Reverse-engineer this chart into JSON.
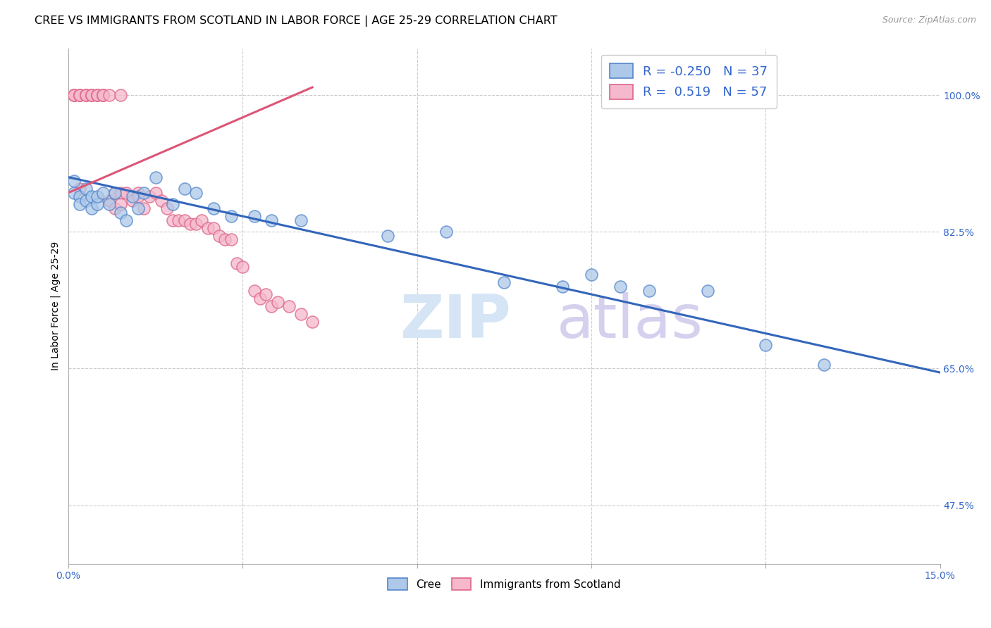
{
  "title": "CREE VS IMMIGRANTS FROM SCOTLAND IN LABOR FORCE | AGE 25-29 CORRELATION CHART",
  "source": "Source: ZipAtlas.com",
  "ylabel": "In Labor Force | Age 25-29",
  "xlim": [
    0.0,
    0.15
  ],
  "ylim": [
    0.4,
    1.06
  ],
  "yticks": [
    0.475,
    0.65,
    0.825,
    1.0
  ],
  "ytick_labels": [
    "47.5%",
    "65.0%",
    "82.5%",
    "100.0%"
  ],
  "cree_R": -0.25,
  "cree_N": 37,
  "scot_R": 0.519,
  "scot_N": 57,
  "cree_color": "#adc8e8",
  "cree_edge_color": "#5588cc",
  "scot_color": "#f5b8cc",
  "scot_edge_color": "#dd6688",
  "cree_line_color": "#3366bb",
  "scot_line_color": "#dd5577",
  "background_color": "#ffffff",
  "grid_color": "#cccccc",
  "cree_x": [
    0.001,
    0.001,
    0.002,
    0.002,
    0.003,
    0.003,
    0.004,
    0.004,
    0.005,
    0.005,
    0.006,
    0.007,
    0.008,
    0.009,
    0.01,
    0.011,
    0.012,
    0.013,
    0.015,
    0.018,
    0.02,
    0.022,
    0.025,
    0.028,
    0.032,
    0.035,
    0.04,
    0.055,
    0.065,
    0.075,
    0.085,
    0.09,
    0.095,
    0.1,
    0.11,
    0.12,
    0.13
  ],
  "cree_y": [
    0.89,
    0.875,
    0.87,
    0.86,
    0.88,
    0.865,
    0.87,
    0.855,
    0.86,
    0.87,
    0.875,
    0.86,
    0.875,
    0.85,
    0.84,
    0.87,
    0.855,
    0.875,
    0.895,
    0.86,
    0.88,
    0.875,
    0.855,
    0.845,
    0.845,
    0.84,
    0.84,
    0.82,
    0.825,
    0.76,
    0.755,
    0.77,
    0.755,
    0.75,
    0.75,
    0.68,
    0.655
  ],
  "scot_x": [
    0.001,
    0.001,
    0.001,
    0.002,
    0.002,
    0.002,
    0.002,
    0.003,
    0.003,
    0.003,
    0.004,
    0.004,
    0.004,
    0.005,
    0.005,
    0.005,
    0.006,
    0.006,
    0.006,
    0.007,
    0.007,
    0.008,
    0.008,
    0.009,
    0.009,
    0.009,
    0.01,
    0.011,
    0.012,
    0.012,
    0.013,
    0.014,
    0.015,
    0.016,
    0.017,
    0.018,
    0.019,
    0.02,
    0.021,
    0.022,
    0.023,
    0.024,
    0.025,
    0.026,
    0.027,
    0.028,
    0.029,
    0.03,
    0.032,
    0.033,
    0.034,
    0.035,
    0.036,
    0.038,
    0.04,
    0.042,
    0.12
  ],
  "scot_y": [
    1.0,
    1.0,
    1.0,
    1.0,
    1.0,
    1.0,
    0.88,
    1.0,
    1.0,
    1.0,
    1.0,
    1.0,
    1.0,
    1.0,
    1.0,
    1.0,
    1.0,
    1.0,
    1.0,
    1.0,
    0.865,
    0.875,
    0.855,
    1.0,
    0.875,
    0.86,
    0.875,
    0.865,
    0.875,
    0.87,
    0.855,
    0.87,
    0.875,
    0.865,
    0.855,
    0.84,
    0.84,
    0.84,
    0.835,
    0.835,
    0.84,
    0.83,
    0.83,
    0.82,
    0.815,
    0.815,
    0.785,
    0.78,
    0.75,
    0.74,
    0.745,
    0.73,
    0.735,
    0.73,
    0.72,
    0.71,
    1.0
  ],
  "cree_line_x": [
    0.0,
    0.15
  ],
  "cree_line_y": [
    0.895,
    0.645
  ],
  "scot_line_x": [
    0.0,
    0.042
  ],
  "scot_line_y": [
    0.875,
    1.01
  ],
  "title_fontsize": 11.5,
  "axis_label_fontsize": 10,
  "tick_fontsize": 10,
  "legend_fontsize": 13,
  "source_fontsize": 9,
  "watermark_zip_color": "#d5e5f5",
  "watermark_atlas_color": "#d5d0ee"
}
